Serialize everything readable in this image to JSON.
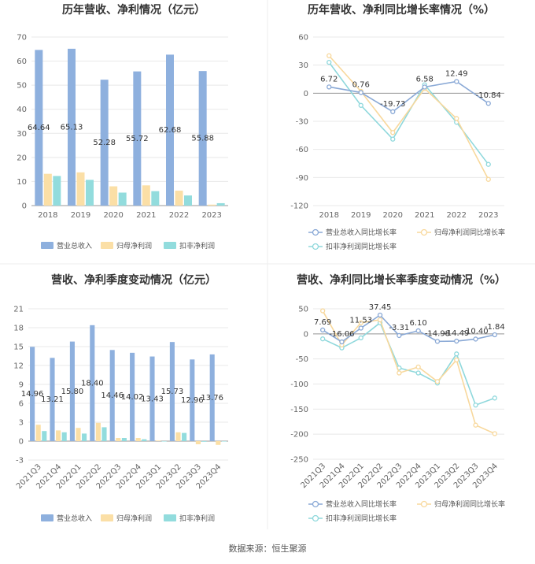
{
  "colors": {
    "revenue": "#8eb0de",
    "net": "#fbdfa6",
    "deducted": "#92dcdd",
    "line_revenue": "#8aa9d6",
    "line_net": "#f8d89c",
    "line_deducted": "#8fd8dc",
    "grid": "#e8e8e8",
    "axis": "#999999"
  },
  "footer": {
    "source": "数据来源：恒生聚源"
  },
  "chart_data": [
    {
      "id": "annual-values",
      "type": "bar",
      "title": "历年营收、净利情况（亿元）",
      "categories": [
        "2018",
        "2019",
        "2020",
        "2021",
        "2022",
        "2023"
      ],
      "ylim": [
        0,
        70
      ],
      "yticks": [
        0,
        10,
        20,
        30,
        40,
        50,
        60,
        70
      ],
      "grid": true,
      "legend_position": "bottom",
      "series": [
        {
          "name": "营业总收入",
          "values": [
            64.64,
            65.13,
            52.28,
            55.72,
            62.68,
            55.88
          ],
          "color_key": "revenue",
          "labels": [
            "64.64",
            "65.13",
            "52.28",
            "55.72",
            "62.68",
            "55.88"
          ]
        },
        {
          "name": "归母净利润",
          "values": [
            13.2,
            13.8,
            8.0,
            8.4,
            6.2,
            0.4
          ],
          "color_key": "net"
        },
        {
          "name": "扣非净利润",
          "values": [
            12.3,
            10.7,
            5.4,
            6.0,
            4.2,
            1.0
          ],
          "color_key": "deducted"
        }
      ]
    },
    {
      "id": "annual-growth",
      "type": "line",
      "title": "历年营收、净利同比增长率情况（%）",
      "categories": [
        "2018",
        "2019",
        "2020",
        "2021",
        "2022",
        "2023"
      ],
      "ylim": [
        -120,
        60
      ],
      "yticks": [
        -120,
        -90,
        -60,
        -30,
        0,
        30,
        60
      ],
      "grid": true,
      "legend_position": "bottom",
      "series": [
        {
          "name": "营业总收入同比增长率",
          "values": [
            6.72,
            0.76,
            -19.73,
            6.58,
            12.49,
            -10.84
          ],
          "color_key": "line_revenue",
          "labels": [
            "6.72",
            "0.76",
            "-19.73",
            "6.58",
            "12.49",
            "-10.84"
          ]
        },
        {
          "name": "归母净利润同比增长率",
          "values": [
            40,
            2,
            -42,
            5,
            -27,
            -92
          ],
          "color_key": "line_net"
        },
        {
          "name": "扣非净利润同比增长率",
          "values": [
            33,
            -13,
            -49,
            9,
            -31,
            -76
          ],
          "color_key": "line_deducted"
        }
      ]
    },
    {
      "id": "quarterly-values",
      "type": "bar",
      "title": "营收、净利季度变动情况（亿元）",
      "categories": [
        "2021Q3",
        "2021Q4",
        "2022Q1",
        "2022Q2",
        "2022Q3",
        "2022Q4",
        "2023Q1",
        "2023Q2",
        "2023Q3",
        "2023Q4"
      ],
      "ylim": [
        -3,
        21
      ],
      "yticks": [
        -3,
        0,
        3,
        6,
        9,
        12,
        15,
        18,
        21
      ],
      "grid": true,
      "legend_position": "bottom",
      "series": [
        {
          "name": "营业总收入",
          "values": [
            14.96,
            13.21,
            15.8,
            18.4,
            14.46,
            14.02,
            13.43,
            15.73,
            12.96,
            13.76
          ],
          "color_key": "revenue",
          "labels": [
            "14.96",
            "13.21",
            "15.80",
            "18.40",
            "14.46",
            "14.02",
            "13.43",
            "15.73",
            "12.96",
            "13.76"
          ]
        },
        {
          "name": "归母净利润",
          "values": [
            2.6,
            1.7,
            2.1,
            2.9,
            0.5,
            0.5,
            0.1,
            1.4,
            -0.5,
            -0.6
          ],
          "color_key": "net"
        },
        {
          "name": "扣非净利润",
          "values": [
            1.6,
            1.4,
            1.2,
            2.2,
            0.5,
            0.3,
            0.0,
            1.3,
            -0.1,
            0.0
          ],
          "color_key": "deducted"
        }
      ]
    },
    {
      "id": "quarterly-growth",
      "type": "line",
      "title": "营收、净利同比增长率季度变动情况（%）",
      "categories": [
        "2021Q3",
        "2021Q4",
        "2022Q1",
        "2022Q2",
        "2022Q3",
        "2022Q4",
        "2023Q1",
        "2023Q2",
        "2023Q3",
        "2023Q4"
      ],
      "ylim": [
        -250,
        50
      ],
      "yticks": [
        -250,
        -200,
        -150,
        -100,
        -50,
        0,
        50
      ],
      "grid": true,
      "legend_position": "bottom",
      "series": [
        {
          "name": "营业总收入同比增长率",
          "values": [
            7.69,
            -16.06,
            11.53,
            37.45,
            -3.31,
            6.1,
            -14.98,
            -14.49,
            -10.4,
            -1.84
          ],
          "color_key": "line_revenue",
          "labels": [
            "7.69",
            "-16.06",
            "11.53",
            "37.45",
            "-3.31",
            "6.10",
            "-14.98",
            "-14.49",
            "-10.40",
            "-1.84"
          ]
        },
        {
          "name": "归母净利润同比增长率",
          "values": [
            46,
            -22,
            22,
            28,
            -78,
            -66,
            -95,
            -52,
            -182,
            -199
          ],
          "color_key": "line_net"
        },
        {
          "name": "扣非净利润同比增长率",
          "values": [
            -10,
            -28,
            -8,
            22,
            -68,
            -78,
            -98,
            -40,
            -142,
            -128
          ],
          "color_key": "line_deducted"
        }
      ]
    }
  ]
}
